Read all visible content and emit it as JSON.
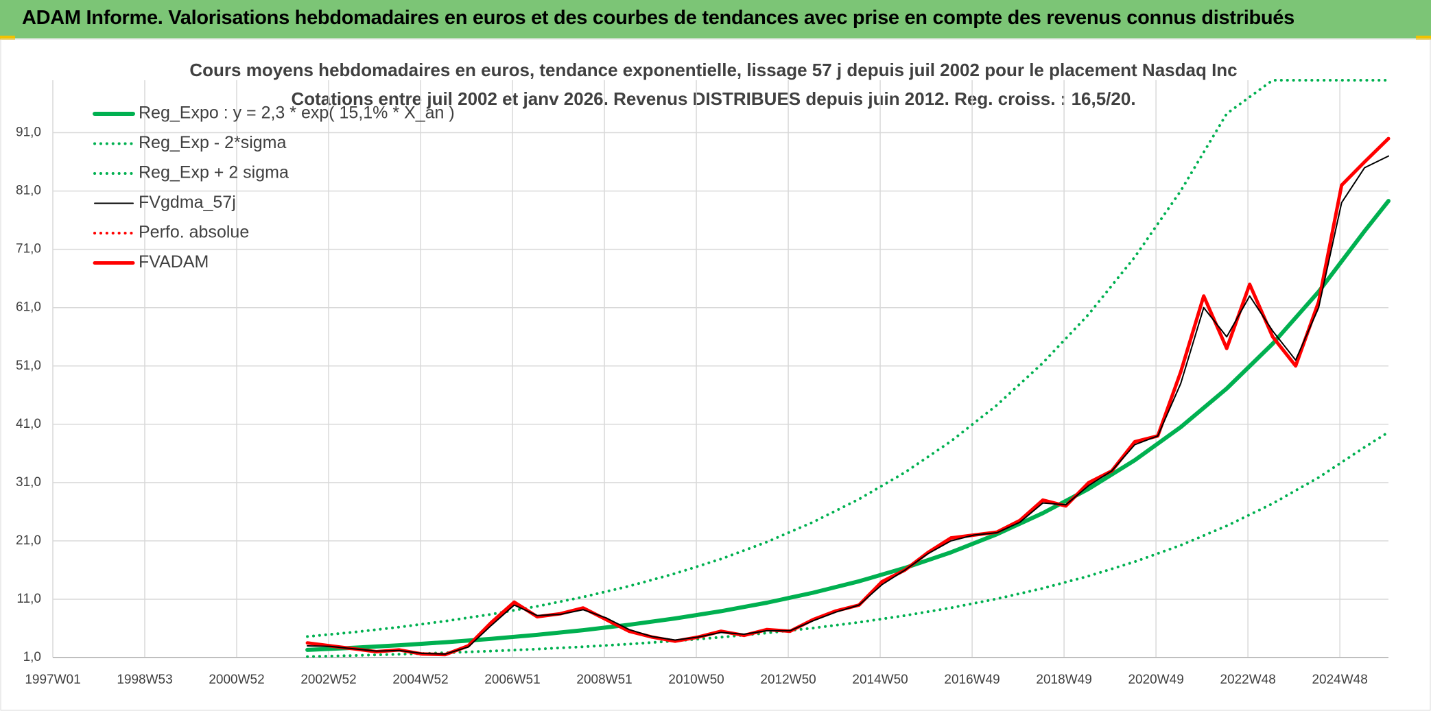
{
  "banner": {
    "title": "ADAM Informe. Valorisations hebdomadaires en euros et des courbes de tendances avec prise en compte des revenus connus distribués"
  },
  "chart_data": {
    "type": "line",
    "title": "Cours moyens hebdomadaires en euros, tendance exponentielle, lissage 57 j depuis juil 2002 pour le placement Nasdaq Inc",
    "subtitle": "Cotations entre juil 2002 et janv 2026. Revenus DISTRIBUES depuis juin 2012. Reg. croiss. : 16,5/20.",
    "xlim": [
      0,
      1511
    ],
    "xticks": [
      {
        "value": 0,
        "label": "1997W01"
      },
      {
        "value": 104,
        "label": "1998W53"
      },
      {
        "value": 208,
        "label": "2000W52"
      },
      {
        "value": 312,
        "label": "2002W52"
      },
      {
        "value": 416,
        "label": "2004W52"
      },
      {
        "value": 520,
        "label": "2006W51"
      },
      {
        "value": 624,
        "label": "2008W51"
      },
      {
        "value": 728,
        "label": "2010W50"
      },
      {
        "value": 832,
        "label": "2012W50"
      },
      {
        "value": 936,
        "label": "2014W50"
      },
      {
        "value": 1040,
        "label": "2016W49"
      },
      {
        "value": 1144,
        "label": "2018W49"
      },
      {
        "value": 1248,
        "label": "2020W49"
      },
      {
        "value": 1352,
        "label": "2022W48"
      },
      {
        "value": 1456,
        "label": "2024W48"
      }
    ],
    "ylim": [
      1,
      100
    ],
    "yticks": [
      {
        "value": 1,
        "label": "1,0"
      },
      {
        "value": 11,
        "label": "11,0"
      },
      {
        "value": 21,
        "label": "21,0"
      },
      {
        "value": 31,
        "label": "31,0"
      },
      {
        "value": 41,
        "label": "41,0"
      },
      {
        "value": 51,
        "label": "51,0"
      },
      {
        "value": 61,
        "label": "61,0"
      },
      {
        "value": 71,
        "label": "71,0"
      },
      {
        "value": 81,
        "label": "81,0"
      },
      {
        "value": 91,
        "label": "91,0"
      }
    ],
    "grid": true,
    "legend": "upper left",
    "series": [
      {
        "name": "Reg_Expo : y = 2,3 * exp( 15,1% *  X_an )",
        "color": "#00b050",
        "style": "solid",
        "width": 6,
        "x": [
          288,
          340,
          392,
          444,
          496,
          548,
          600,
          652,
          704,
          756,
          808,
          860,
          912,
          964,
          1016,
          1068,
          1120,
          1172,
          1224,
          1276,
          1328,
          1380,
          1432,
          1484,
          1511
        ],
        "values": [
          2.3,
          2.67,
          3.11,
          3.62,
          4.21,
          4.89,
          5.69,
          6.62,
          7.7,
          8.95,
          10.41,
          12.11,
          14.08,
          16.37,
          19.04,
          22.14,
          25.76,
          29.95,
          34.84,
          40.52,
          47.13,
          54.81,
          63.74,
          74.13,
          79.3
        ]
      },
      {
        "name": "Reg_Exp - 2*sigma",
        "color": "#00b050",
        "style": "dotted",
        "width": 4,
        "x": [
          288,
          340,
          392,
          444,
          496,
          548,
          600,
          652,
          704,
          756,
          808,
          860,
          912,
          964,
          1016,
          1068,
          1120,
          1172,
          1224,
          1276,
          1328,
          1380,
          1432,
          1484,
          1511
        ],
        "values": [
          1.15,
          1.34,
          1.56,
          1.81,
          2.11,
          2.45,
          2.85,
          3.31,
          3.85,
          4.48,
          5.21,
          6.06,
          7.04,
          8.19,
          9.52,
          11.07,
          12.88,
          14.98,
          17.42,
          20.26,
          23.57,
          27.41,
          31.87,
          37.07,
          39.65
        ]
      },
      {
        "name": "Reg_Exp + 2 sigma",
        "color": "#00b050",
        "style": "dotted",
        "width": 4,
        "x": [
          288,
          340,
          392,
          444,
          496,
          548,
          600,
          652,
          704,
          756,
          808,
          860,
          912,
          964,
          1016,
          1068,
          1120,
          1172,
          1224,
          1276,
          1328,
          1380,
          1432,
          1484,
          1511
        ],
        "values": [
          4.6,
          5.34,
          6.22,
          7.24,
          8.42,
          9.78,
          11.38,
          13.24,
          15.4,
          17.9,
          20.82,
          24.22,
          28.16,
          32.74,
          38.08,
          44.28,
          51.52,
          59.9,
          69.68,
          81.04,
          94.26,
          100,
          100,
          100,
          100
        ]
      },
      {
        "name": "FVgdma_57j",
        "color": "#000000",
        "style": "solid",
        "width": 2,
        "on_top": true,
        "x": [
          288,
          314,
          340,
          366,
          392,
          418,
          444,
          470,
          496,
          522,
          548,
          574,
          600,
          626,
          652,
          678,
          704,
          730,
          756,
          782,
          808,
          834,
          860,
          886,
          912,
          938,
          964,
          990,
          1016,
          1042,
          1068,
          1094,
          1120,
          1146,
          1172,
          1198,
          1224,
          1250,
          1276,
          1302,
          1328,
          1354,
          1380,
          1406,
          1432,
          1458,
          1484,
          1511
        ],
        "values": [
          3.0,
          2.9,
          2.5,
          2.1,
          2.2,
          1.7,
          1.6,
          2.8,
          6.5,
          10,
          8.2,
          8.4,
          9.2,
          7.8,
          5.8,
          4.6,
          4,
          4.5,
          5.3,
          5,
          5.6,
          5.6,
          7.3,
          8.8,
          10,
          13.5,
          16,
          18.8,
          21,
          22,
          22.4,
          24.2,
          27.5,
          27.2,
          30.5,
          33,
          37.5,
          39,
          48,
          61,
          56,
          63,
          57,
          52,
          61,
          79,
          85,
          87
        ]
      },
      {
        "name": "Perfo. absolue",
        "color": "#ff0000",
        "style": "dotted",
        "width": 4,
        "x": [
          288,
          1511
        ],
        "values": [
          null,
          null
        ]
      },
      {
        "name": "FVADAM",
        "color": "#ff0000",
        "style": "solid",
        "width": 5,
        "x": [
          288,
          314,
          340,
          366,
          392,
          418,
          444,
          470,
          496,
          522,
          548,
          574,
          600,
          626,
          652,
          678,
          704,
          730,
          756,
          782,
          808,
          834,
          860,
          886,
          912,
          938,
          964,
          990,
          1016,
          1042,
          1068,
          1094,
          1120,
          1146,
          1172,
          1198,
          1224,
          1250,
          1276,
          1302,
          1328,
          1354,
          1380,
          1406,
          1432,
          1458,
          1484,
          1511
        ],
        "values": [
          3.5,
          3.0,
          2.5,
          2.0,
          2.3,
          1.6,
          1.5,
          3.0,
          7,
          10.5,
          8,
          8.5,
          9.5,
          7.5,
          5.5,
          4.5,
          3.8,
          4.5,
          5.5,
          4.8,
          5.8,
          5.5,
          7.5,
          9,
          10,
          14,
          16,
          19,
          21.5,
          22,
          22.5,
          24.5,
          28,
          27,
          31,
          33,
          38,
          39,
          50,
          63,
          54,
          65,
          56,
          51,
          62,
          82,
          86,
          90
        ]
      }
    ]
  }
}
